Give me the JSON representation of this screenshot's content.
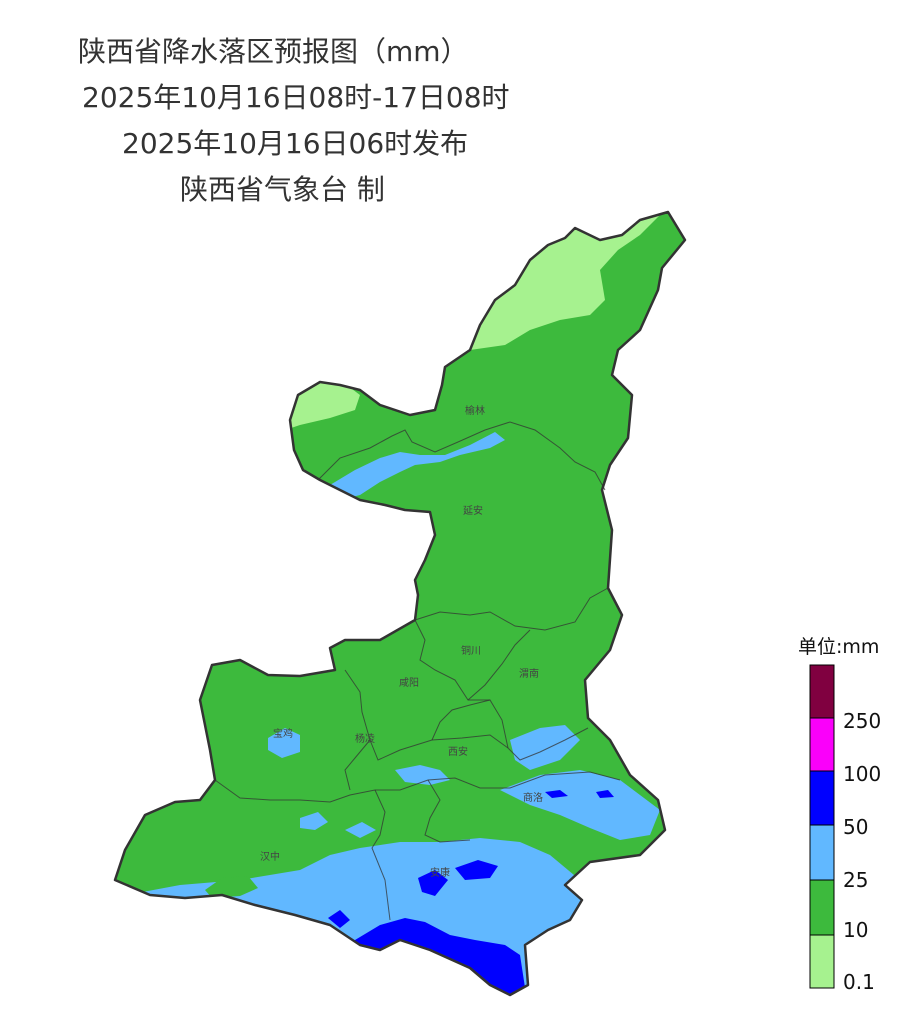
{
  "title": {
    "line1": "陕西省降水落区预报图（mm）",
    "line2": "2025年10月16日08时-17日08时",
    "line3": "2025年10月16日06时发布",
    "line4": "陕西省气象台 制"
  },
  "colors": {
    "r0_1": "#a6f28f",
    "r10": "#3dba3d",
    "r25": "#61b8ff",
    "r50": "#0000ff",
    "r100": "#fa00fa",
    "r250": "#800040",
    "border": "#333333"
  },
  "cities": [
    {
      "name": "榆林"
    },
    {
      "name": "延安"
    },
    {
      "name": "铜川"
    },
    {
      "name": "渭南"
    },
    {
      "name": "咸阳"
    },
    {
      "name": "宝鸡"
    },
    {
      "name": "杨凌"
    },
    {
      "name": "西安"
    },
    {
      "name": "商洛"
    },
    {
      "name": "汉中"
    },
    {
      "name": "安康"
    }
  ],
  "legend": {
    "title": "单位:mm",
    "labels": [
      "250",
      "100",
      "50",
      "25",
      "10",
      "0.1"
    ]
  }
}
